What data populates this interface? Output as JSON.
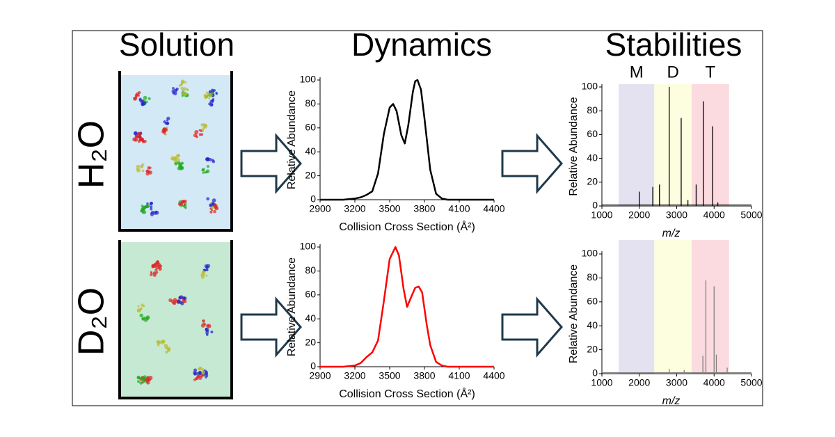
{
  "headings": [
    "Solution",
    "Dynamics",
    "Stabilities"
  ],
  "solvents": [
    "H₂O",
    "D₂O"
  ],
  "chart_data": [
    {
      "type": "line",
      "color": "#000000",
      "xlabel": "Collision Cross Section (Å²)",
      "ylabel": "Relative Abundance",
      "x": [
        2900,
        3000,
        3100,
        3200,
        3250,
        3300,
        3350,
        3400,
        3450,
        3500,
        3530,
        3560,
        3600,
        3630,
        3660,
        3700,
        3720,
        3740,
        3770,
        3800,
        3850,
        3900,
        3950,
        4000,
        4100,
        4400
      ],
      "values": [
        0,
        0,
        0,
        1,
        2,
        4,
        7,
        22,
        55,
        77,
        80,
        74,
        54,
        47,
        62,
        90,
        99,
        100,
        92,
        68,
        25,
        5,
        1,
        0,
        0,
        0
      ],
      "xlim": [
        2900,
        4400
      ],
      "xticks": [
        2900,
        3200,
        3500,
        3800,
        4100,
        4400
      ],
      "ylim": [
        0,
        100
      ],
      "yticks": [
        0,
        20,
        40,
        60,
        80,
        100
      ]
    },
    {
      "type": "line",
      "color": "#ff0000",
      "xlabel": "Collision Cross Section (Å²)",
      "ylabel": "Relative Abundance",
      "x": [
        2900,
        3000,
        3100,
        3200,
        3250,
        3300,
        3350,
        3400,
        3450,
        3500,
        3550,
        3580,
        3620,
        3650,
        3680,
        3720,
        3750,
        3780,
        3820,
        3850,
        3900,
        3950,
        4000,
        4100,
        4400
      ],
      "values": [
        0,
        0,
        0,
        1,
        3,
        8,
        12,
        22,
        55,
        90,
        100,
        93,
        65,
        50,
        57,
        66,
        67,
        62,
        35,
        18,
        4,
        1,
        0,
        0,
        0
      ],
      "xlim": [
        2900,
        4400
      ],
      "xticks": [
        2900,
        3200,
        3500,
        3800,
        4100,
        4400
      ],
      "ylim": [
        0,
        100
      ],
      "yticks": [
        0,
        20,
        40,
        60,
        80,
        100
      ]
    },
    {
      "type": "stem",
      "color": "#000000",
      "xlabel": "m/z",
      "ylabel": "Relative Abundance",
      "x": [
        2000,
        2360,
        2540,
        2800,
        3120,
        3300,
        3520,
        3710,
        3960,
        4100
      ],
      "values": [
        12,
        16,
        18,
        100,
        74,
        5,
        18,
        88,
        67,
        3
      ],
      "regions": [
        {
          "label": "M",
          "range": [
            1450,
            2400
          ],
          "color": "#e4e1f1"
        },
        {
          "label": "D",
          "range": [
            2400,
            3400
          ],
          "color": "#fdfde0"
        },
        {
          "label": "T",
          "range": [
            3400,
            4400
          ],
          "color": "#fbdbdf"
        }
      ],
      "xlim": [
        1000,
        5000
      ],
      "xticks": [
        1000,
        2000,
        3000,
        4000,
        5000
      ],
      "ylim": [
        0,
        100
      ],
      "yticks": [
        0,
        20,
        40,
        60,
        80,
        100
      ]
    },
    {
      "type": "stem",
      "color": "#808080",
      "xlabel": "m/z",
      "ylabel": "Relative Abundance",
      "x": [
        2800,
        3200,
        3700,
        3780,
        4000,
        4060,
        4350
      ],
      "values": [
        4,
        3,
        15,
        78,
        73,
        16,
        5
      ],
      "regions": [
        {
          "range": [
            1450,
            2400
          ],
          "color": "#e4e1f1"
        },
        {
          "range": [
            2400,
            3400
          ],
          "color": "#fdfde0"
        },
        {
          "range": [
            3400,
            4400
          ],
          "color": "#fbdbdf"
        }
      ],
      "xlim": [
        1000,
        5000
      ],
      "xticks": [
        1000,
        2000,
        3000,
        4000,
        5000
      ],
      "ylim": [
        0,
        100
      ],
      "yticks": [
        0,
        20,
        40,
        60,
        80,
        100
      ]
    }
  ]
}
